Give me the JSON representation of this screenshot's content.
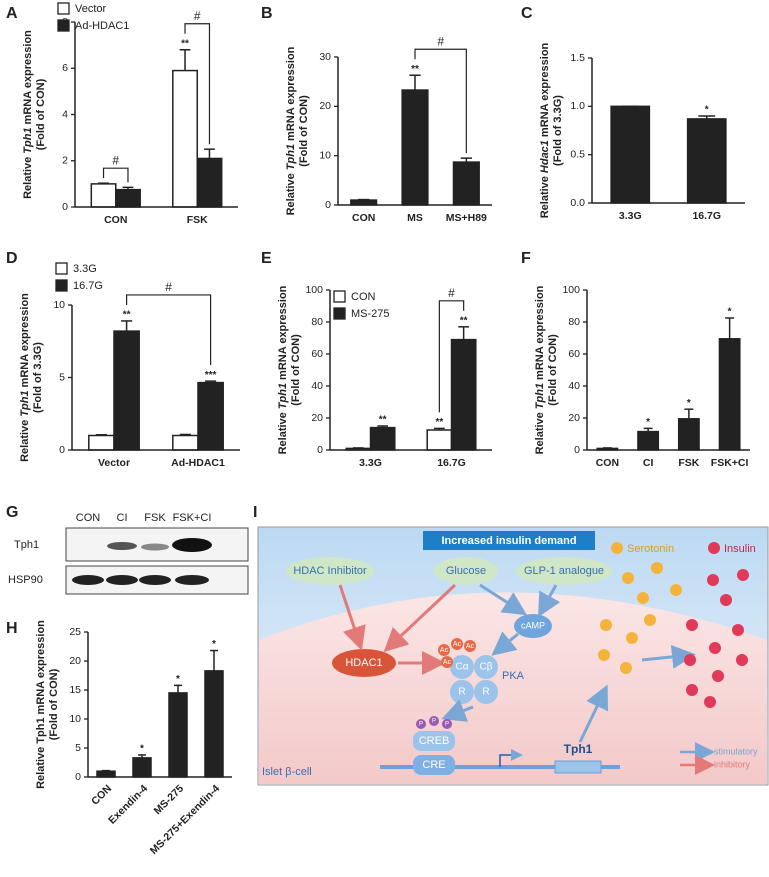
{
  "chart_data": [
    {
      "panel": "A",
      "type": "bar",
      "categories": [
        "CON",
        "FSK"
      ],
      "series": [
        {
          "name": "Vector",
          "color": "#ffffff",
          "values": [
            1,
            5.9
          ],
          "errors": [
            0.03,
            0.9
          ],
          "sig": [
            null,
            "**"
          ]
        },
        {
          "name": "Ad-HDAC1",
          "color": "#222222",
          "values": [
            0.75,
            2.1
          ],
          "errors": [
            0.1,
            0.4
          ],
          "sig": [
            null,
            null
          ]
        }
      ],
      "ylim": [
        0,
        8
      ],
      "yticks": [
        0,
        2,
        4,
        6,
        8
      ],
      "ylabel": {
        "pre": "Relative",
        "gene": "Tph1",
        "post": "mRNA expression",
        "unit": "(Fold of CON)"
      },
      "brackets": [
        {
          "text": "#",
          "from": [
            0,
            0
          ],
          "to": [
            1,
            0
          ]
        },
        {
          "text": "#",
          "from": [
            0,
            1
          ],
          "to": [
            1,
            1
          ]
        }
      ]
    },
    {
      "panel": "B",
      "type": "bar",
      "categories": [
        "CON",
        "MS",
        "MS+H89"
      ],
      "color": "#222222",
      "values": [
        1,
        23.3,
        8.7
      ],
      "errors": [
        0.1,
        3,
        0.8
      ],
      "sig": [
        null,
        "**",
        null
      ],
      "ylim": [
        0,
        30
      ],
      "yticks": [
        0,
        10,
        20,
        30
      ],
      "ylabel": {
        "pre": "Relative",
        "gene": "Tph1",
        "post": "mRNA expression",
        "unit": "(Fold of CON)"
      },
      "brackets": [
        {
          "text": "#",
          "from": 1,
          "to": 2
        }
      ]
    },
    {
      "panel": "C",
      "type": "bar",
      "categories": [
        "3.3G",
        "16.7G"
      ],
      "color": "#222222",
      "values": [
        1,
        0.87
      ],
      "errors": [
        0,
        0.03
      ],
      "sig": [
        null,
        "*"
      ],
      "ylim": [
        0,
        1.5
      ],
      "yticks": [
        {
          "value": 0,
          "label": "0.0"
        },
        {
          "value": 0.5,
          "label": "0.5"
        },
        {
          "value": 1,
          "label": "1.0"
        },
        {
          "value": 1.5,
          "label": "1.5"
        }
      ],
      "ylabel": {
        "pre": "Relative",
        "gene": "Hdac1",
        "post": "mRNA expression",
        "unit": "(Fold of 3.3G)"
      }
    },
    {
      "panel": "D",
      "type": "bar",
      "categories": [
        "Vector",
        "Ad-HDAC1"
      ],
      "series": [
        {
          "name": "3.3G",
          "color": "#ffffff",
          "values": [
            1,
            1
          ],
          "errors": [
            0.05,
            0.07
          ],
          "sig": [
            null,
            null
          ]
        },
        {
          "name": "16.7G",
          "color": "#222222",
          "values": [
            8.2,
            4.65
          ],
          "errors": [
            0.7,
            0.1
          ],
          "sig": [
            "**",
            "***"
          ]
        }
      ],
      "ylim": [
        0,
        10
      ],
      "yticks": [
        0,
        5,
        10
      ],
      "ylabel": {
        "pre": "Relative",
        "gene": "Tph1",
        "post": "mRNA expression",
        "unit": "(Fold of 3.3G)"
      },
      "brackets": [
        {
          "text": "#",
          "from": [
            1,
            0
          ],
          "to": [
            1,
            1
          ]
        }
      ]
    },
    {
      "panel": "E",
      "type": "bar",
      "categories": [
        "3.3G",
        "16.7G"
      ],
      "series": [
        {
          "name": "CON",
          "color": "#ffffff",
          "values": [
            1,
            12.5
          ],
          "errors": [
            0.3,
            1
          ],
          "sig": [
            null,
            "**"
          ]
        },
        {
          "name": "MS-275",
          "color": "#222222",
          "values": [
            14,
            69
          ],
          "errors": [
            1,
            8
          ],
          "sig": [
            "**",
            "**"
          ]
        }
      ],
      "ylim": [
        0,
        100
      ],
      "yticks": [
        0,
        20,
        40,
        60,
        80,
        100
      ],
      "ylabel": {
        "pre": "Relative",
        "gene": "Tph1",
        "post": "mRNA expression",
        "unit": "(Fold of CON)"
      },
      "brackets": [
        {
          "text": "#",
          "from": [
            0,
            1
          ],
          "to": [
            1,
            1
          ]
        }
      ]
    },
    {
      "panel": "F",
      "type": "bar",
      "categories": [
        "CON",
        "CI",
        "FSK",
        "FSK+CI"
      ],
      "color": "#222222",
      "values": [
        1,
        11.5,
        19.5,
        69.5
      ],
      "errors": [
        0.3,
        2,
        6,
        13
      ],
      "sig": [
        null,
        "*",
        "*",
        "*"
      ],
      "ylim": [
        0,
        100
      ],
      "yticks": [
        0,
        20,
        40,
        60,
        80,
        100
      ],
      "ylabel": {
        "pre": "Relative",
        "gene": "Tph1",
        "post": "mRNA expression",
        "unit": "(Fold of CON)"
      }
    },
    {
      "panel": "H",
      "type": "bar",
      "categories": [
        "CON",
        "Exendin-4",
        "MS-275",
        "MS-275+Exendin-4"
      ],
      "color": "#222222",
      "values": [
        1,
        3.3,
        14.5,
        18.3
      ],
      "errors": [
        0.1,
        0.5,
        1.3,
        3.5
      ],
      "sig": [
        null,
        "*",
        "*",
        "*"
      ],
      "ylim": [
        0,
        25
      ],
      "yticks": [
        0,
        5,
        10,
        15,
        20,
        25
      ],
      "xtick_rotation": 45,
      "gene_italic": false,
      "ylabel": {
        "pre": "Relative",
        "gene": "Tph1",
        "post": "mRNA expression",
        "unit": "(Fold of CON)"
      }
    }
  ],
  "blot": {
    "panel": "G",
    "lanes": [
      "CON",
      "CI",
      "FSK",
      "FSK+CI"
    ],
    "rows": [
      "Tph1",
      "HSP90"
    ]
  },
  "diagram": {
    "panel": "I",
    "banner": "Increased insulin demand",
    "serotonin": "Serotonin",
    "insulin": "Insulin",
    "hdac_inhibitor": "HDAC Inhibitor",
    "glucose": "Glucose",
    "glp1": "GLP-1 analogue",
    "camp": "cAMP",
    "hdac1": "HDAC1",
    "pka": "PKA",
    "c_alpha": "Cα",
    "c_beta": "Cβ",
    "r": [
      "R",
      "R"
    ],
    "acetyl": [
      "Ac",
      "Ac",
      "Ac",
      "Ac"
    ],
    "phospho": [
      "P",
      "P",
      "P"
    ],
    "creb": "CREB",
    "cre": "CRE",
    "gene": "Tph1",
    "cell": "Islet β-cell",
    "stimulatory": "stimulatory",
    "inhibitory": "inhibitory"
  }
}
